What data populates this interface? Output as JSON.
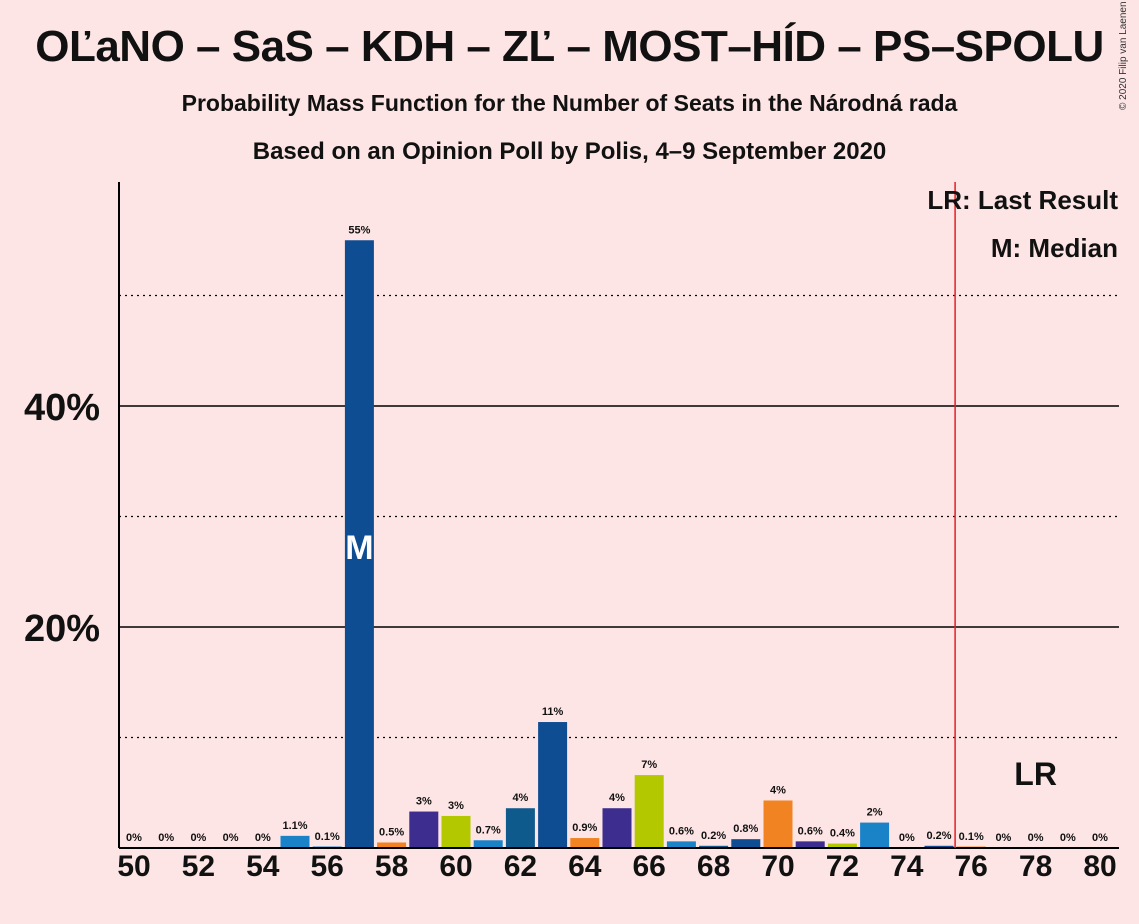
{
  "title": "OĽaNO – SaS – KDH – ZĽ – MOST–HÍD – PS–SPOLU",
  "subtitle": "Probability Mass Function for the Number of Seats in the Národná rada",
  "subtitle2": "Based on an Opinion Poll by Polis, 4–9 September 2020",
  "copyright": "© 2020 Filip van Laenen",
  "legend": {
    "lr": "LR: Last Result",
    "median": "M: Median"
  },
  "markers": {
    "median_label": "M",
    "lr_label": "LR"
  },
  "colors": {
    "background": "#fde5e5",
    "lr_line": "#e31e24",
    "gridline": "#000000"
  },
  "chart_data": {
    "type": "bar",
    "categories": [
      50,
      51,
      52,
      53,
      54,
      55,
      56,
      57,
      58,
      59,
      60,
      61,
      62,
      63,
      64,
      65,
      66,
      67,
      68,
      69,
      70,
      71,
      72,
      73,
      74,
      75,
      76,
      77,
      78,
      79,
      80
    ],
    "values": [
      0,
      0,
      0,
      0,
      0,
      1.1,
      0.1,
      55,
      0.5,
      3,
      3,
      0.7,
      4,
      11,
      0.9,
      4,
      7,
      0.6,
      0.2,
      0.8,
      4,
      0.6,
      0.4,
      2,
      0,
      0.2,
      0.1,
      0,
      0,
      0,
      0
    ],
    "bar_values": [
      0,
      0,
      0,
      0,
      0,
      1.1,
      0.1,
      55.0,
      0.5,
      3.3,
      2.9,
      0.7,
      3.6,
      11.4,
      0.9,
      3.6,
      6.6,
      0.6,
      0.2,
      0.8,
      4.3,
      0.6,
      0.4,
      2.3,
      0,
      0.2,
      0.1,
      0,
      0,
      0,
      0
    ],
    "labels": [
      "0%",
      "0%",
      "0%",
      "0%",
      "0%",
      "1.1%",
      "0.1%",
      "55%",
      "0.5%",
      "3%",
      "3%",
      "0.7%",
      "4%",
      "11%",
      "0.9%",
      "4%",
      "7%",
      "0.6%",
      "0.2%",
      "0.8%",
      "4%",
      "0.6%",
      "0.4%",
      "2%",
      "0%",
      "0.2%",
      "0.1%",
      "0%",
      "0%",
      "0%",
      "0%"
    ],
    "bar_colors": [
      "#0f4d92",
      "#0f4d92",
      "#0f4d92",
      "#0f4d92",
      "#0f4d92",
      "#1a83c8",
      "#1a83c8",
      "#0f4d92",
      "#f28322",
      "#3c2d8e",
      "#b4c800",
      "#1a83c8",
      "#0f5a8c",
      "#0f4d92",
      "#f28322",
      "#3c2d8e",
      "#b4c800",
      "#1a83c8",
      "#0f5a8c",
      "#0f4d92",
      "#f28322",
      "#3c2d8e",
      "#b4c800",
      "#1a83c8",
      "#0f5a8c",
      "#0f4d92",
      "#f28322",
      "#3c2d8e",
      "#b4c800",
      "#1a83c8",
      "#0f5a8c"
    ],
    "x_tick_labels": [
      "50",
      "52",
      "54",
      "56",
      "58",
      "60",
      "62",
      "64",
      "66",
      "68",
      "70",
      "72",
      "74",
      "76",
      "78",
      "80"
    ],
    "y_ticks": [
      {
        "value": 20,
        "label": "20%"
      },
      {
        "value": 40,
        "label": "40%"
      }
    ],
    "y_minor_gridlines": [
      10,
      30,
      50
    ],
    "ylim": [
      0,
      60
    ],
    "median": 57,
    "last_result": 75.5,
    "xlabel": "",
    "ylabel": ""
  }
}
